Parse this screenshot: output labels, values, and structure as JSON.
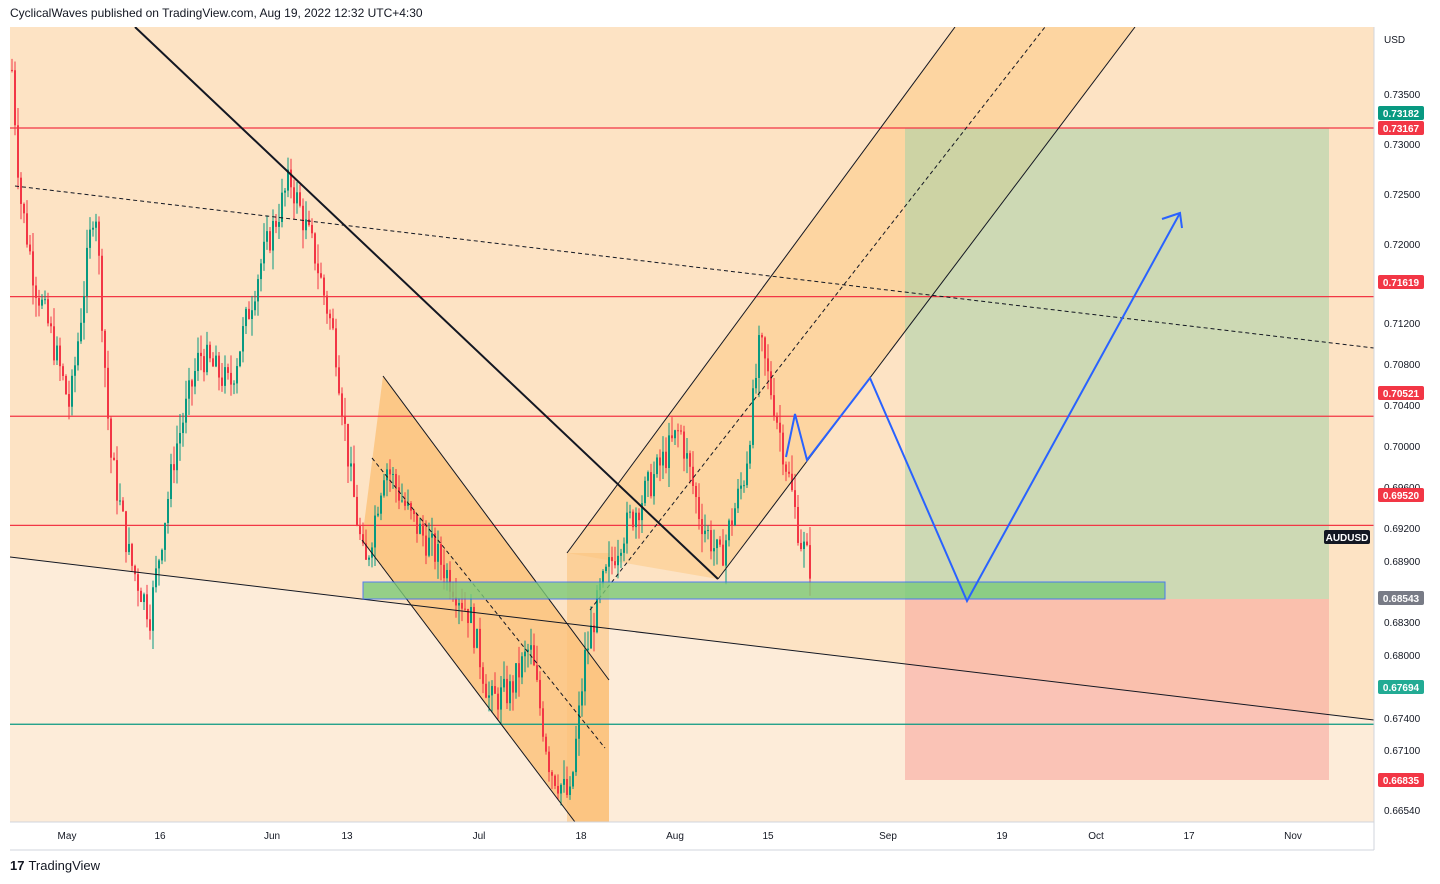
{
  "header": {
    "author": "CyclicalWaves",
    "published_text": "published on TradingView.com, Aug 19, 2022 12:32 UTC+4:30"
  },
  "footer": {
    "logo": "17",
    "brand": "TradingView"
  },
  "chart_data": {
    "type": "candlestick",
    "symbol": "AUDUSD",
    "currency": "USD",
    "x_tick_labels": [
      "May",
      "16",
      "Jun",
      "13",
      "Jul",
      "18",
      "Aug",
      "15",
      "Sep",
      "19",
      "Oct",
      "17",
      "Nov"
    ],
    "y_tick_labels": [
      "0.73500",
      "0.73000",
      "0.72500",
      "0.72000",
      "0.71200",
      "0.70800",
      "0.70400",
      "0.70000",
      "0.69600",
      "0.69200",
      "0.68900",
      "0.68300",
      "0.68000",
      "0.67400",
      "0.67100",
      "0.66540"
    ],
    "price_tags": [
      {
        "label": "0.73182",
        "color": "#089981"
      },
      {
        "label": "0.73167",
        "color": "#f23645"
      },
      {
        "label": "0.71619",
        "color": "#f23645"
      },
      {
        "label": "0.70521",
        "color": "#f23645"
      },
      {
        "label": "0.69520",
        "color": "#f23645"
      },
      {
        "label": "AUDUSD",
        "color": "#131722"
      },
      {
        "label": "0.68543",
        "color": "#787b86"
      },
      {
        "label": "0.67694",
        "color": "#22ab94"
      },
      {
        "label": "0.66835",
        "color": "#f23645"
      }
    ],
    "horizontal_levels": [
      {
        "price": 0.73167,
        "color": "#f23645"
      },
      {
        "price": 0.71619,
        "color": "#f23645"
      },
      {
        "price": 0.70521,
        "color": "#f23645"
      },
      {
        "price": 0.6952,
        "color": "#f23645"
      },
      {
        "price": 0.67694,
        "color": "#089981"
      }
    ],
    "position": {
      "entry": 0.68543,
      "target": 0.73167,
      "stop": 0.66835
    },
    "demand_zone": {
      "top": 0.6872,
      "bottom": 0.68543
    },
    "colors": {
      "up": "#089981",
      "down": "#f23645",
      "projection": "#2962ff",
      "background": "#fde3c4"
    }
  }
}
